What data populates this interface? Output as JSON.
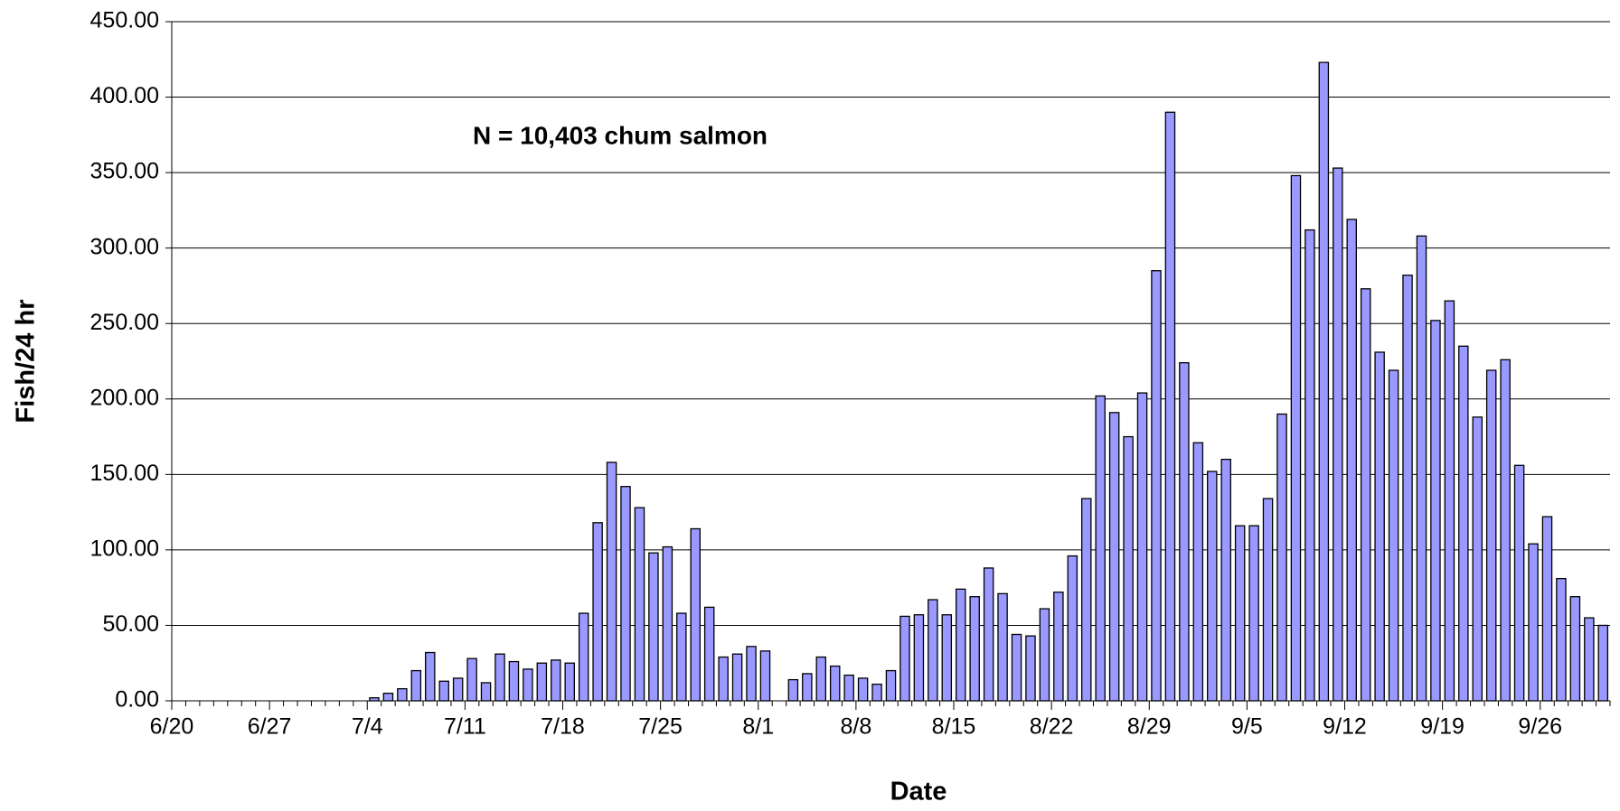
{
  "chart_data": {
    "type": "bar",
    "annotation": "N = 10,403 chum salmon",
    "x_label": "Date",
    "y_label": "Fish/24 hr",
    "color": "#9999ff",
    "grid": true,
    "categories": [
      "6/20",
      null,
      null,
      null,
      null,
      null,
      null,
      "6/27",
      null,
      null,
      null,
      null,
      null,
      null,
      "7/4",
      null,
      null,
      null,
      null,
      null,
      null,
      "7/11",
      null,
      null,
      null,
      null,
      null,
      null,
      "7/18",
      null,
      null,
      null,
      null,
      null,
      null,
      "7/25",
      null,
      null,
      null,
      null,
      null,
      null,
      "8/1",
      null,
      null,
      null,
      null,
      null,
      null,
      "8/8",
      null,
      null,
      null,
      null,
      null,
      null,
      "8/15",
      null,
      null,
      null,
      null,
      null,
      null,
      "8/22",
      null,
      null,
      null,
      null,
      null,
      null,
      "8/29",
      null,
      null,
      null,
      null,
      null,
      null,
      "9/5",
      null,
      null,
      null,
      null,
      null,
      null,
      "9/12",
      null,
      null,
      null,
      null,
      null,
      null,
      "9/19",
      null,
      null,
      null,
      null,
      null,
      null,
      "9/26",
      null,
      null,
      null,
      null
    ],
    "values": [
      null,
      null,
      null,
      null,
      null,
      null,
      null,
      null,
      null,
      null,
      null,
      null,
      null,
      null,
      2,
      5,
      8,
      20,
      32,
      13,
      15,
      28,
      12,
      31,
      26,
      21,
      25,
      27,
      25,
      58,
      118,
      158,
      142,
      128,
      98,
      102,
      58,
      114,
      62,
      29,
      31,
      36,
      33,
      null,
      14,
      18,
      29,
      23,
      17,
      15,
      11,
      20,
      56,
      57,
      67,
      57,
      74,
      69,
      88,
      71,
      44,
      43,
      61,
      72,
      96,
      134,
      202,
      191,
      175,
      204,
      285,
      390,
      224,
      171,
      152,
      160,
      116,
      116,
      134,
      190,
      348,
      312,
      423,
      353,
      319,
      273,
      231,
      219,
      282,
      308,
      252,
      265,
      235,
      188,
      219,
      226,
      156,
      104,
      122,
      81,
      69,
      55,
      50
    ],
    "ylim": [
      0,
      450
    ],
    "yticks": [
      {
        "value": 0,
        "label": "0.00"
      },
      {
        "value": 50,
        "label": "50.00"
      },
      {
        "value": 100,
        "label": "100.00"
      },
      {
        "value": 150,
        "label": "150.00"
      },
      {
        "value": 200,
        "label": "200.00"
      },
      {
        "value": 250,
        "label": "250.00"
      },
      {
        "value": 300,
        "label": "300.00"
      },
      {
        "value": 350,
        "label": "350.00"
      },
      {
        "value": 400,
        "label": "400.00"
      },
      {
        "value": 450,
        "label": "450.00"
      }
    ]
  }
}
